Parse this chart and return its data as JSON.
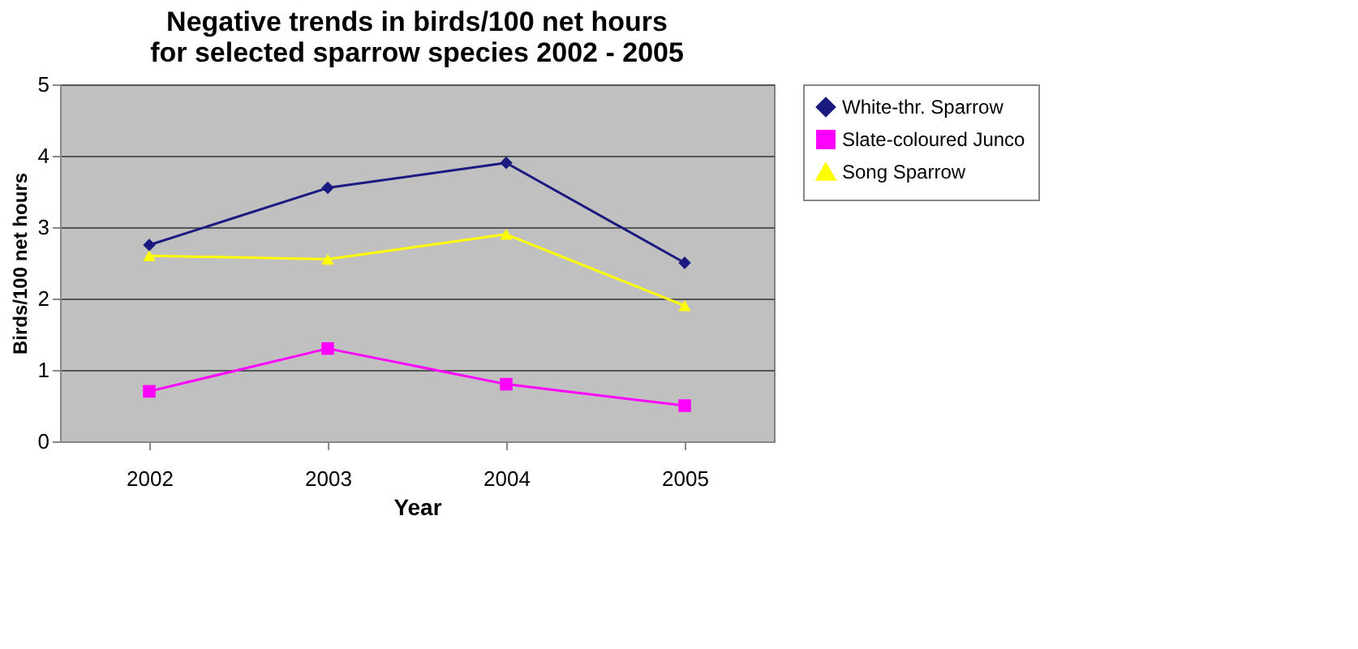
{
  "chart_data": {
    "type": "line",
    "title": "Negative trends in birds/100 net hours for selected sparrow species 2002 - 2005",
    "xlabel": "Year",
    "ylabel": "Birds/100 net hours",
    "categories": [
      "2002",
      "2003",
      "2004",
      "2005"
    ],
    "series": [
      {
        "name": "White-thr. Sparrow",
        "color": "#1a1a80",
        "marker": "diamond",
        "values": [
          2.75,
          3.55,
          3.9,
          2.5
        ]
      },
      {
        "name": "Slate-coloured Junco",
        "color": "#ff00ff",
        "marker": "square",
        "values": [
          0.7,
          1.3,
          0.8,
          0.5
        ]
      },
      {
        "name": "Song Sparrow",
        "color": "#ffff00",
        "marker": "triangle",
        "values": [
          2.6,
          2.55,
          2.9,
          1.9
        ]
      }
    ],
    "ylim": [
      0,
      5
    ],
    "yticks": [
      0,
      1,
      2,
      3,
      4,
      5
    ],
    "grid": "y",
    "legend": "right"
  }
}
